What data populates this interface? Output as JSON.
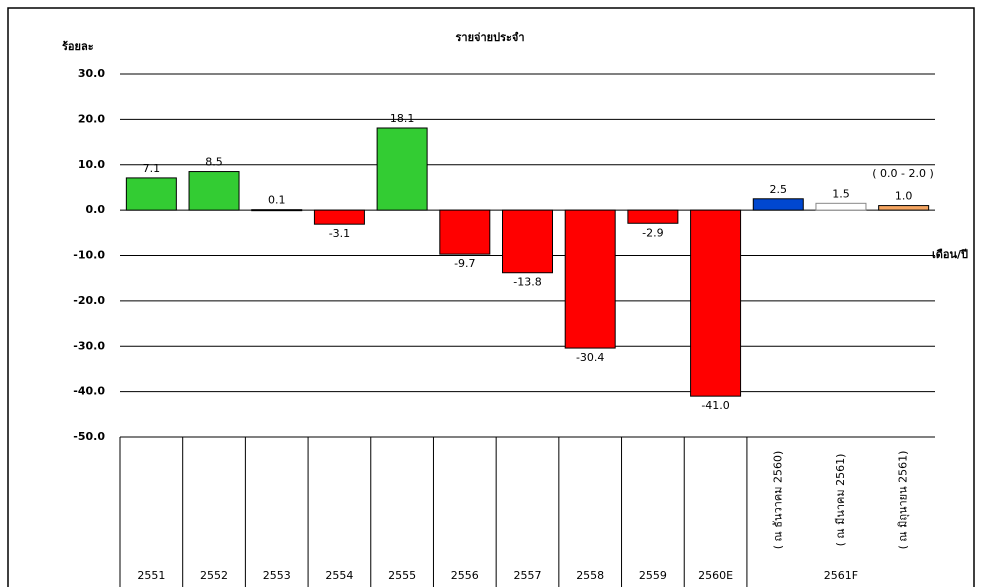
{
  "chart_data": {
    "type": "bar",
    "title": "รายจ่ายประจำ",
    "y_label": "ร้อยละ",
    "x_label": "เดือน/ปี",
    "annotation": "( 0.0 - 2.0 )",
    "group_label": "2561F",
    "categories": [
      "2551",
      "2552",
      "2553",
      "2554",
      "2555",
      "2556",
      "2557",
      "2558",
      "2559",
      "2560E",
      "( ณ ธันวาคม 2560)",
      "( ณ มีนาคม 2561)",
      "( ณ มิถุนายน 2561)"
    ],
    "values": [
      7.1,
      8.5,
      0.1,
      -3.1,
      18.1,
      -9.7,
      -13.8,
      -30.4,
      -2.9,
      -41.0,
      2.5,
      1.5,
      1.0
    ],
    "value_labels": [
      "7.1",
      "8.5",
      "0.1",
      "-3.1",
      "18.1",
      "-9.7",
      "-13.8",
      "-30.4",
      "-2.9",
      "-41.0",
      "2.5",
      "1.5",
      "1.0"
    ],
    "colors": [
      "#33cc33",
      "#33cc33",
      "#33cc33",
      "#ff0000",
      "#33cc33",
      "#ff0000",
      "#ff0000",
      "#ff0000",
      "#ff0000",
      "#ff0000",
      "#0047d0",
      "#ffffff",
      "#f4a460"
    ],
    "ylim": [
      -50,
      30
    ],
    "yticks": [
      {
        "value": 30,
        "label": "30.0"
      },
      {
        "value": 20,
        "label": "20.0"
      },
      {
        "value": 10,
        "label": "10.0"
      },
      {
        "value": 0,
        "label": "0.0"
      },
      {
        "value": -10,
        "label": "-10.0"
      },
      {
        "value": -20,
        "label": "-20.0"
      },
      {
        "value": -30,
        "label": "-30.0"
      },
      {
        "value": -40,
        "label": "-40.0"
      },
      {
        "value": -50,
        "label": "-50.0"
      }
    ],
    "grid": true
  }
}
